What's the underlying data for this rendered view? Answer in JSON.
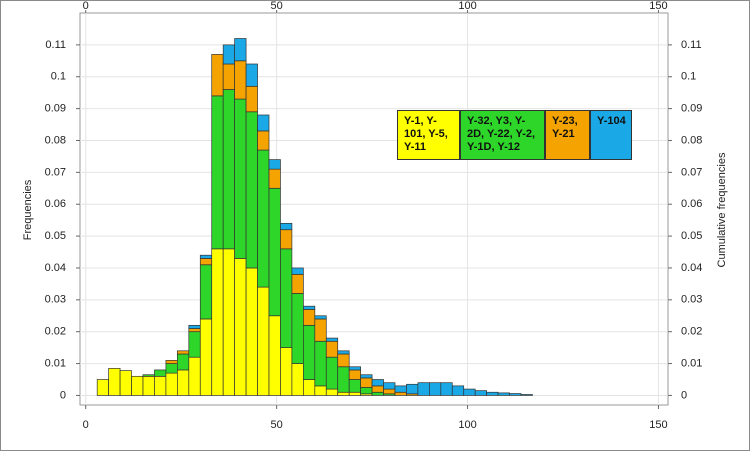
{
  "chart_data": {
    "type": "histogram",
    "ylabel": "Frequencies",
    "y2label": "Cumulative frequencies",
    "xlim": [
      -1.5,
      152.5
    ],
    "xticks": [
      0,
      50,
      100,
      150
    ],
    "ylim": [
      -0.003,
      0.12
    ],
    "yticks": [
      0,
      0.01,
      0.02,
      0.03,
      0.04,
      0.05,
      0.06,
      0.07,
      0.08,
      0.09,
      0.1,
      0.11
    ],
    "y2lim": [
      -0.003,
      0.12
    ],
    "y2ticks": [
      0,
      0.01,
      0.02,
      0.03,
      0.04,
      0.05,
      0.06,
      0.07,
      0.08,
      0.09,
      0.1,
      0.11
    ],
    "grid": true,
    "stacked": true,
    "bins": [
      3,
      6,
      9,
      12,
      15,
      18,
      21,
      24,
      27,
      30,
      33,
      36,
      39,
      42,
      45,
      48,
      51,
      54,
      57,
      60,
      63,
      66,
      69,
      72,
      75,
      78,
      81,
      84,
      87,
      90,
      93,
      96,
      99,
      102,
      105,
      108,
      111,
      114,
      117
    ],
    "series": [
      {
        "name": "Y-1, Y-101, Y-5, Y-11",
        "color": "#ffff00",
        "values": [
          0.005,
          0.0085,
          0.0078,
          0.006,
          0.006,
          0.006,
          0.007,
          0.008,
          0.012,
          0.024,
          0.046,
          0.046,
          0.043,
          0.04,
          0.034,
          0.025,
          0.015,
          0.01,
          0.005,
          0.003,
          0.002,
          0.001,
          0.001,
          0.0005,
          0,
          0,
          0,
          0,
          0,
          0,
          0,
          0,
          0,
          0,
          0,
          0,
          0,
          0
        ]
      },
      {
        "name": "Y-32, Y3, Y-2D, Y-22, Y-2, Y-1D, Y-12",
        "color": "#2ed62a",
        "values": [
          0,
          0,
          0,
          0,
          0.0005,
          0.002,
          0.003,
          0.005,
          0.008,
          0.017,
          0.048,
          0.05,
          0.05,
          0.049,
          0.043,
          0.04,
          0.031,
          0.022,
          0.017,
          0.014,
          0.01,
          0.008,
          0.004,
          0.002,
          0.001,
          0.0005,
          0,
          0,
          0,
          0,
          0,
          0,
          0,
          0,
          0,
          0,
          0,
          0
        ]
      },
      {
        "name": "Y-23, Y-21",
        "color": "#f5a300",
        "values": [
          0,
          0,
          0,
          0,
          0,
          0,
          0.001,
          0.001,
          0.001,
          0.002,
          0.013,
          0.008,
          0.012,
          0.008,
          0.006,
          0.006,
          0.006,
          0.006,
          0.005,
          0.007,
          0.005,
          0.004,
          0.003,
          0.003,
          0.002,
          0.0015,
          0.001,
          0.0005,
          0,
          0,
          0,
          0,
          0,
          0,
          0,
          0,
          0,
          0
        ]
      },
      {
        "name": "Y-104",
        "color": "#1aa9e6",
        "values": [
          0,
          0,
          0,
          0,
          0,
          0,
          0,
          0,
          0.001,
          0.001,
          0,
          0.006,
          0.007,
          0.007,
          0.005,
          0.003,
          0.002,
          0.002,
          0.001,
          0.001,
          0.001,
          0.001,
          0.001,
          0.001,
          0.002,
          0.002,
          0.002,
          0.003,
          0.004,
          0.004,
          0.004,
          0.003,
          0.002,
          0.0015,
          0.001,
          0.0008,
          0.0006,
          0.0003
        ]
      }
    ]
  }
}
